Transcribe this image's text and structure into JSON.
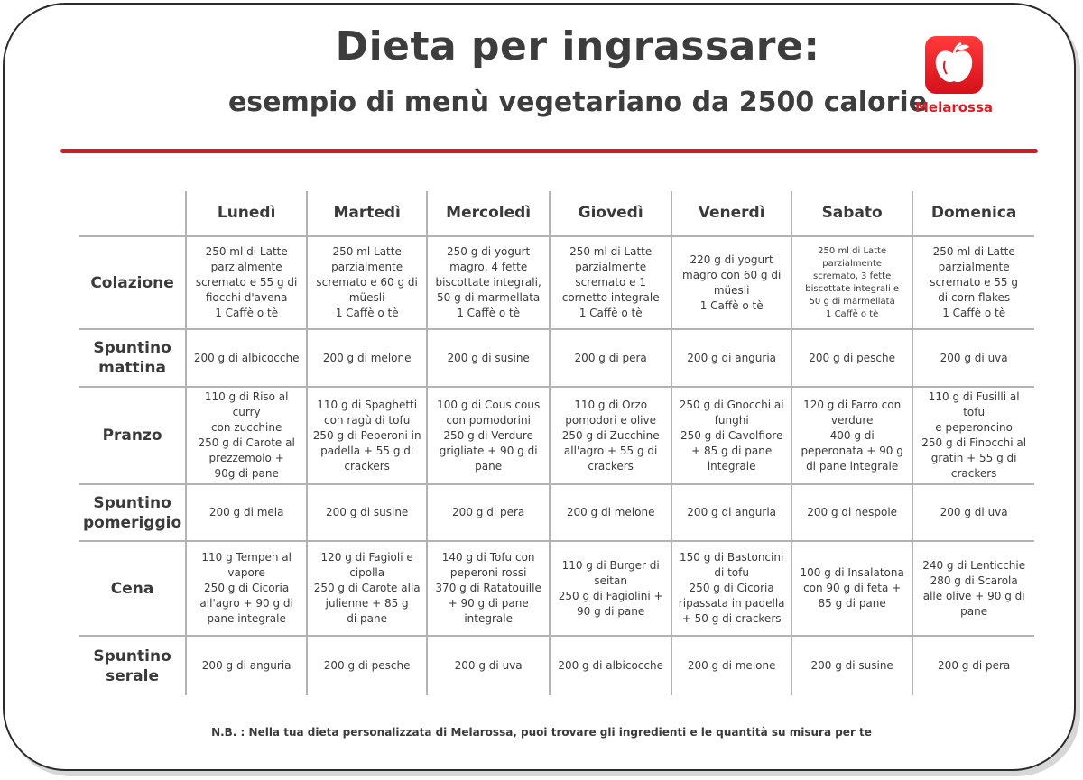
{
  "header": {
    "title": "Dieta per ingrassare:",
    "subtitle": "esempio di menù vegetariano da 2500 calorie"
  },
  "logo": {
    "name": "Melarossa",
    "icon": "apple-icon",
    "color": "#e11b22"
  },
  "accent_color": "#d81920",
  "table": {
    "days": [
      "Lunedì",
      "Martedì",
      "Mercoledì",
      "Giovedì",
      "Venerdì",
      "Sabato",
      "Domenica"
    ],
    "rows": [
      {
        "meal": "Colazione",
        "cells": [
          "250 ml di Latte\nparzialmente\nscremato e 55 g di\nfiocchi d'avena\n1 Caffè o tè",
          "250 ml Latte\nparzialmente\nscremato e  60 g di\nmüesli\n1 Caffè o tè",
          "250 g di yogurt\nmagro, 4 fette\nbiscottate integrali,\n50 g di marmellata\n1 Caffè o tè",
          "250 ml di Latte\nparzialmente\nscremato e 1\ncornetto integrale\n1 Caffè o tè",
          "220 g di yogurt\nmagro con 60 g di\nmüesli\n1 Caffè o tè",
          "250 ml di Latte\nparzialmente\nscremato, 3 fette\nbiscottate integrali e\n50 g di marmellata\n1 Caffè o tè",
          "250 ml di Latte\nparzialmente\nscremato e 55 g\ndi corn flakes\n1 Caffè o tè"
        ]
      },
      {
        "meal": "Spuntino\nmattina",
        "cells": [
          "200 g di albicocche",
          "200 g di melone",
          "200 g di susine",
          "200 g di pera",
          "200 g di anguria",
          "200 g di pesche",
          "200 g di uva"
        ]
      },
      {
        "meal": "Pranzo",
        "cells": [
          "110 g di Riso al curry\ncon zucchine\n250 g di Carote al\nprezzemolo +\n90g di pane",
          "110 g di Spaghetti\ncon ragù di tofu\n250 g di Peperoni in\npadella + 55 g di\ncrackers",
          "100 g di Cous cous\ncon pomodorini\n250 g di Verdure\ngrigliate  + 90 g di\npane",
          "110 g di Orzo\npomodori e olive\n250 g di Zucchine\nall'agro + 55 g di\ncrackers",
          "250 g di Gnocchi ai\nfunghi\n250 g di Cavolfiore\n+ 85 g di pane\nintegrale",
          "120 g di Farro con\nverdure\n400 g di\npeperonata + 90 g\ndi pane integrale",
          "110 g di Fusilli al tofu\ne peperoncino\n250 g di Finocchi al\ngratin  + 55 g di\ncrackers"
        ]
      },
      {
        "meal": "Spuntino\npomeriggio",
        "cells": [
          "200 g di mela",
          "200 g di susine",
          "200 g di pera",
          "200 g di melone",
          "200 g di anguria",
          "200 g di nespole",
          "200 g di uva"
        ]
      },
      {
        "meal": "Cena",
        "cells": [
          "110 g Tempeh al\nvapore\n250 g di Cicoria\nall'agro + 90 g di\npane integrale",
          "120 g di Fagioli e\ncipolla\n250 g  di Carote alla\njulienne + 85 g\ndi pane",
          "140 g di Tofu con\npeperoni rossi\n370 g di Ratatouille\n+ 90 g di pane\nintegrale",
          "110 g di Burger di\nseitan\n250 g di Fagiolini +\n90 g di pane",
          "150 g di Bastoncini\ndi tofu\n250 g di Cicoria\nripassata in padella\n+ 50 g di crackers",
          "100 g di Insalatona\ncon 90 g di feta +\n85 g di pane",
          "240 g di Lenticchie\n280 g di Scarola\nalle olive + 90 g di\npane"
        ]
      },
      {
        "meal": "Spuntino\nserale",
        "cells": [
          "200 g di anguria",
          "200 g di pesche",
          "200 g di uva",
          "200 g di albicocche",
          "200 g di melone",
          "200 g di susine",
          "200 g di pera"
        ]
      }
    ]
  },
  "footer": {
    "note": "N.B. : Nella tua dieta personalizzata di Melarossa, puoi trovare gli ingredienti e le quantità su misura per te"
  }
}
